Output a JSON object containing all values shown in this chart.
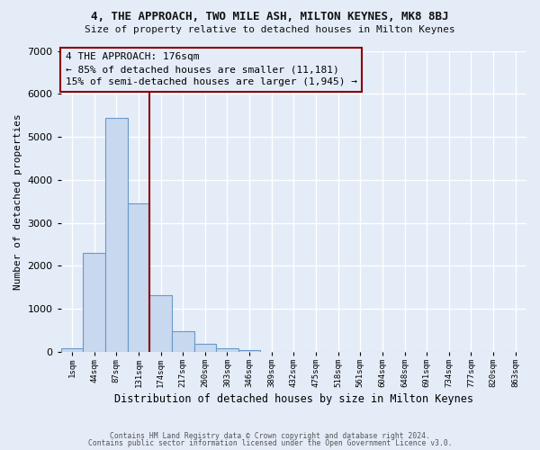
{
  "title": "4, THE APPROACH, TWO MILE ASH, MILTON KEYNES, MK8 8BJ",
  "subtitle": "Size of property relative to detached houses in Milton Keynes",
  "xlabel": "Distribution of detached houses by size in Milton Keynes",
  "ylabel": "Number of detached properties",
  "bar_values": [
    75,
    2300,
    5450,
    3450,
    1320,
    470,
    185,
    80,
    40,
    0,
    0,
    0,
    0,
    0,
    0,
    0,
    0,
    0,
    0,
    0,
    0
  ],
  "bar_labels": [
    "1sqm",
    "44sqm",
    "87sqm",
    "131sqm",
    "174sqm",
    "217sqm",
    "260sqm",
    "303sqm",
    "346sqm",
    "389sqm",
    "432sqm",
    "475sqm",
    "518sqm",
    "561sqm",
    "604sqm",
    "648sqm",
    "691sqm",
    "734sqm",
    "777sqm",
    "820sqm",
    "863sqm"
  ],
  "bar_color": "#c8d8ee",
  "bar_edge_color": "#6699cc",
  "bg_color": "#e4ecf8",
  "grid_color": "#ffffff",
  "property_line_color": "#8b0000",
  "property_line_x": 4.0,
  "annotation_line1": "4 THE APPROACH: 176sqm",
  "annotation_line2": "← 85% of detached houses are smaller (11,181)",
  "annotation_line3": "15% of semi-detached houses are larger (1,945) →",
  "ylim_max": 7000,
  "footer1": "Contains HM Land Registry data © Crown copyright and database right 2024.",
  "footer2": "Contains public sector information licensed under the Open Government Licence v3.0.",
  "n_bars": 21
}
